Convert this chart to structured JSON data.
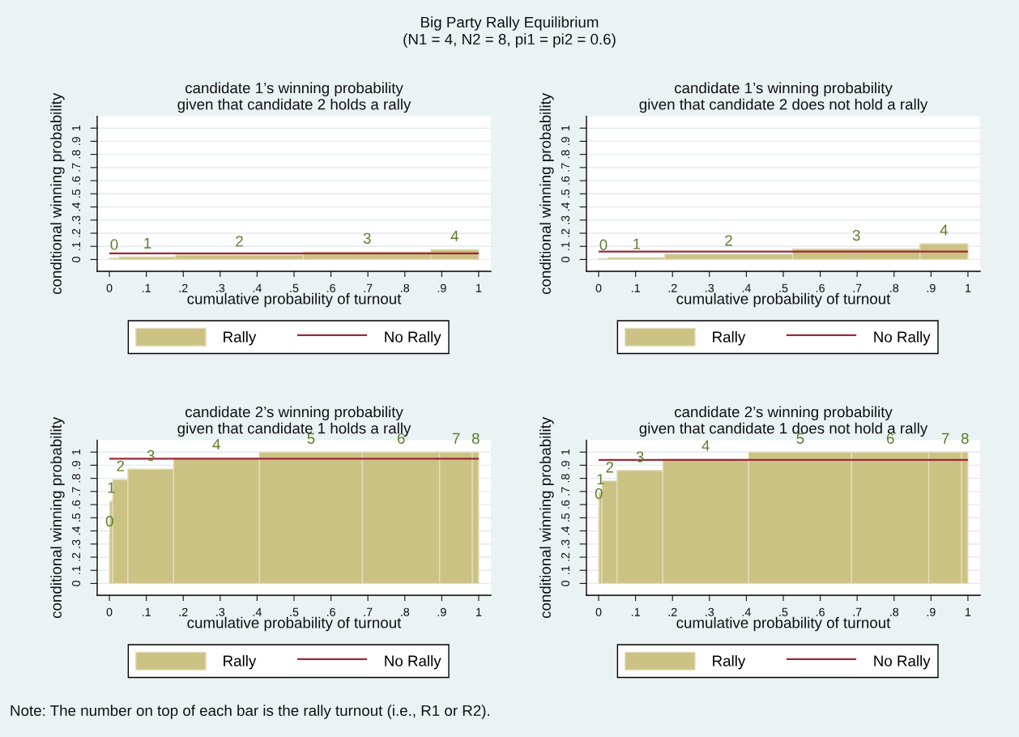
{
  "chart_data": [
    {
      "type": "other",
      "title": "Big Party Rally Equilibrium",
      "subtitle": "(N1 = 4, N2 = 8, pi1 = pi2 = 0.6)",
      "annotations": [
        "Note: The number on top of each bar is the rally turnout (i.e., R1 or R2)."
      ]
    },
    {
      "type": "histogram",
      "title": "candidate 1’s winning probability\ngiven that candidate 2 holds a rally",
      "xlabel": "cumulative probability of turnout",
      "ylabel": "conditional winning probability",
      "bins": [
        0,
        0.026,
        0.179,
        0.525,
        0.87,
        1
      ],
      "series": [
        {
          "name": "Rally",
          "color": "#cbc283",
          "values": [
            0.01,
            0.02,
            0.035,
            0.057,
            0.075
          ]
        }
      ],
      "ref_lines": [
        {
          "axis": "y",
          "value": 0.046,
          "label": "No Rally",
          "color": "#9a2a3a"
        }
      ],
      "annotations": [
        {
          "text": "0",
          "x": 0.013,
          "y": 0.01
        },
        {
          "text": "1",
          "x": 0.103,
          "y": 0.02
        },
        {
          "text": "2",
          "x": 0.352,
          "y": 0.035
        },
        {
          "text": "3",
          "x": 0.698,
          "y": 0.057
        },
        {
          "text": "4",
          "x": 0.935,
          "y": 0.075
        }
      ],
      "xlim": [
        -0.033,
        1.033
      ],
      "ylim": [
        -0.09,
        1.09
      ],
      "xticks": [
        0,
        {
          "value": 0.1,
          "label": ".1"
        },
        {
          "value": 0.2,
          "label": ".2"
        },
        {
          "value": 0.3,
          "label": ".3"
        },
        {
          "value": 0.4,
          "label": ".4"
        },
        {
          "value": 0.5,
          "label": ".5"
        },
        {
          "value": 0.6,
          "label": ".6"
        },
        {
          "value": 0.7,
          "label": ".7"
        },
        {
          "value": 0.8,
          "label": ".8"
        },
        {
          "value": 0.9,
          "label": ".9"
        },
        1
      ],
      "yticks": [
        0,
        {
          "value": 0.1,
          "label": ".1"
        },
        {
          "value": 0.2,
          "label": ".2"
        },
        {
          "value": 0.3,
          "label": ".3"
        },
        {
          "value": 0.4,
          "label": ".4"
        },
        {
          "value": 0.5,
          "label": ".5"
        },
        {
          "value": 0.6,
          "label": ".6"
        },
        {
          "value": 0.7,
          "label": ".7"
        },
        {
          "value": 0.8,
          "label": ".8"
        },
        {
          "value": 0.9,
          "label": ".9"
        },
        1
      ],
      "grid": "y",
      "legend": "bottom"
    },
    {
      "type": "histogram",
      "title": "candidate 1’s winning probability\ngiven that candidate 2 does not hold a rally",
      "xlabel": "cumulative probability of turnout",
      "ylabel": "conditional winning probability",
      "bins": [
        0,
        0.026,
        0.179,
        0.525,
        0.87,
        1
      ],
      "series": [
        {
          "name": "Rally",
          "color": "#cbc283",
          "values": [
            0.008,
            0.015,
            0.04,
            0.08,
            0.12
          ]
        }
      ],
      "ref_lines": [
        {
          "axis": "y",
          "value": 0.06,
          "label": "No Rally",
          "color": "#9a2a3a"
        }
      ],
      "annotations": [
        {
          "text": "0",
          "x": 0.013,
          "y": 0.008
        },
        {
          "text": "1",
          "x": 0.103,
          "y": 0.015
        },
        {
          "text": "2",
          "x": 0.352,
          "y": 0.04
        },
        {
          "text": "3",
          "x": 0.698,
          "y": 0.08
        },
        {
          "text": "4",
          "x": 0.935,
          "y": 0.12
        }
      ],
      "xlim": [
        -0.033,
        1.033
      ],
      "ylim": [
        -0.09,
        1.09
      ],
      "xticks": [
        0,
        {
          "value": 0.1,
          "label": ".1"
        },
        {
          "value": 0.2,
          "label": ".2"
        },
        {
          "value": 0.3,
          "label": ".3"
        },
        {
          "value": 0.4,
          "label": ".4"
        },
        {
          "value": 0.5,
          "label": ".5"
        },
        {
          "value": 0.6,
          "label": ".6"
        },
        {
          "value": 0.7,
          "label": ".7"
        },
        {
          "value": 0.8,
          "label": ".8"
        },
        {
          "value": 0.9,
          "label": ".9"
        },
        1
      ],
      "yticks": [
        0,
        {
          "value": 0.1,
          "label": ".1"
        },
        {
          "value": 0.2,
          "label": ".2"
        },
        {
          "value": 0.3,
          "label": ".3"
        },
        {
          "value": 0.4,
          "label": ".4"
        },
        {
          "value": 0.5,
          "label": ".5"
        },
        {
          "value": 0.6,
          "label": ".6"
        },
        {
          "value": 0.7,
          "label": ".7"
        },
        {
          "value": 0.8,
          "label": ".8"
        },
        {
          "value": 0.9,
          "label": ".9"
        },
        1
      ],
      "grid": "y",
      "legend": "bottom"
    },
    {
      "type": "histogram",
      "title": "candidate 2’s winning probability\ngiven that candidate 1 holds a rally",
      "xlabel": "cumulative probability of turnout",
      "ylabel": "conditional winning probability",
      "bins": [
        0,
        0.001,
        0.009,
        0.05,
        0.174,
        0.406,
        0.685,
        0.894,
        0.983,
        1
      ],
      "series": [
        {
          "name": "Rally",
          "color": "#cbc283",
          "values": [
            0.37,
            0.625,
            0.79,
            0.87,
            0.955,
            1,
            1,
            1,
            1
          ]
        }
      ],
      "ref_lines": [
        {
          "axis": "y",
          "value": 0.95,
          "label": "No Rally",
          "color": "#9a2a3a"
        }
      ],
      "annotations": [
        {
          "text": "0",
          "x": 0.0005,
          "y": 0.37
        },
        {
          "text": "1",
          "x": 0.005,
          "y": 0.625
        },
        {
          "text": "2",
          "x": 0.03,
          "y": 0.79
        },
        {
          "text": "3",
          "x": 0.112,
          "y": 0.87
        },
        {
          "text": "4",
          "x": 0.29,
          "y": 0.955
        },
        {
          "text": "5",
          "x": 0.546,
          "y": 1
        },
        {
          "text": "6",
          "x": 0.79,
          "y": 1
        },
        {
          "text": "7",
          "x": 0.939,
          "y": 1
        },
        {
          "text": "8",
          "x": 0.992,
          "y": 1
        }
      ],
      "xlim": [
        -0.033,
        1.033
      ],
      "ylim": [
        -0.09,
        1.09
      ],
      "xticks": [
        0,
        {
          "value": 0.1,
          "label": ".1"
        },
        {
          "value": 0.2,
          "label": ".2"
        },
        {
          "value": 0.3,
          "label": ".3"
        },
        {
          "value": 0.4,
          "label": ".4"
        },
        {
          "value": 0.5,
          "label": ".5"
        },
        {
          "value": 0.6,
          "label": ".6"
        },
        {
          "value": 0.7,
          "label": ".7"
        },
        {
          "value": 0.8,
          "label": ".8"
        },
        {
          "value": 0.9,
          "label": ".9"
        },
        1
      ],
      "yticks": [
        0,
        {
          "value": 0.1,
          "label": ".1"
        },
        {
          "value": 0.2,
          "label": ".2"
        },
        {
          "value": 0.3,
          "label": ".3"
        },
        {
          "value": 0.4,
          "label": ".4"
        },
        {
          "value": 0.5,
          "label": ".5"
        },
        {
          "value": 0.6,
          "label": ".6"
        },
        {
          "value": 0.7,
          "label": ".7"
        },
        {
          "value": 0.8,
          "label": ".8"
        },
        {
          "value": 0.9,
          "label": ".9"
        },
        1
      ],
      "grid": "y",
      "legend": "bottom"
    },
    {
      "type": "histogram",
      "title": "candidate 2’s winning probability\ngiven that candidate 1 does not hold a rally",
      "xlabel": "cumulative probability of turnout",
      "ylabel": "conditional winning probability",
      "bins": [
        0,
        0.001,
        0.009,
        0.05,
        0.174,
        0.406,
        0.685,
        0.894,
        0.983,
        1
      ],
      "series": [
        {
          "name": "Rally",
          "color": "#cbc283",
          "values": [
            0.58,
            0.69,
            0.78,
            0.86,
            0.945,
            1,
            1,
            1,
            1
          ]
        }
      ],
      "ref_lines": [
        {
          "axis": "y",
          "value": 0.94,
          "label": "No Rally",
          "color": "#9a2a3a"
        }
      ],
      "annotations": [
        {
          "text": "0",
          "x": 0.0005,
          "y": 0.58
        },
        {
          "text": "1",
          "x": 0.005,
          "y": 0.69
        },
        {
          "text": "2",
          "x": 0.03,
          "y": 0.78
        },
        {
          "text": "3",
          "x": 0.112,
          "y": 0.86
        },
        {
          "text": "4",
          "x": 0.29,
          "y": 0.945
        },
        {
          "text": "5",
          "x": 0.546,
          "y": 1
        },
        {
          "text": "6",
          "x": 0.79,
          "y": 1
        },
        {
          "text": "7",
          "x": 0.939,
          "y": 1
        },
        {
          "text": "8",
          "x": 0.992,
          "y": 1
        }
      ],
      "xlim": [
        -0.033,
        1.033
      ],
      "ylim": [
        -0.09,
        1.09
      ],
      "xticks": [
        0,
        {
          "value": 0.1,
          "label": ".1"
        },
        {
          "value": 0.2,
          "label": ".2"
        },
        {
          "value": 0.3,
          "label": ".3"
        },
        {
          "value": 0.4,
          "label": ".4"
        },
        {
          "value": 0.5,
          "label": ".5"
        },
        {
          "value": 0.6,
          "label": ".6"
        },
        {
          "value": 0.7,
          "label": ".7"
        },
        {
          "value": 0.8,
          "label": ".8"
        },
        {
          "value": 0.9,
          "label": ".9"
        },
        1
      ],
      "yticks": [
        0,
        {
          "value": 0.1,
          "label": ".1"
        },
        {
          "value": 0.2,
          "label": ".2"
        },
        {
          "value": 0.3,
          "label": ".3"
        },
        {
          "value": 0.4,
          "label": ".4"
        },
        {
          "value": 0.5,
          "label": ".5"
        },
        {
          "value": 0.6,
          "label": ".6"
        },
        {
          "value": 0.7,
          "label": ".7"
        },
        {
          "value": 0.8,
          "label": ".8"
        },
        {
          "value": 0.9,
          "label": ".9"
        },
        1
      ],
      "grid": "y",
      "legend": "bottom"
    }
  ]
}
